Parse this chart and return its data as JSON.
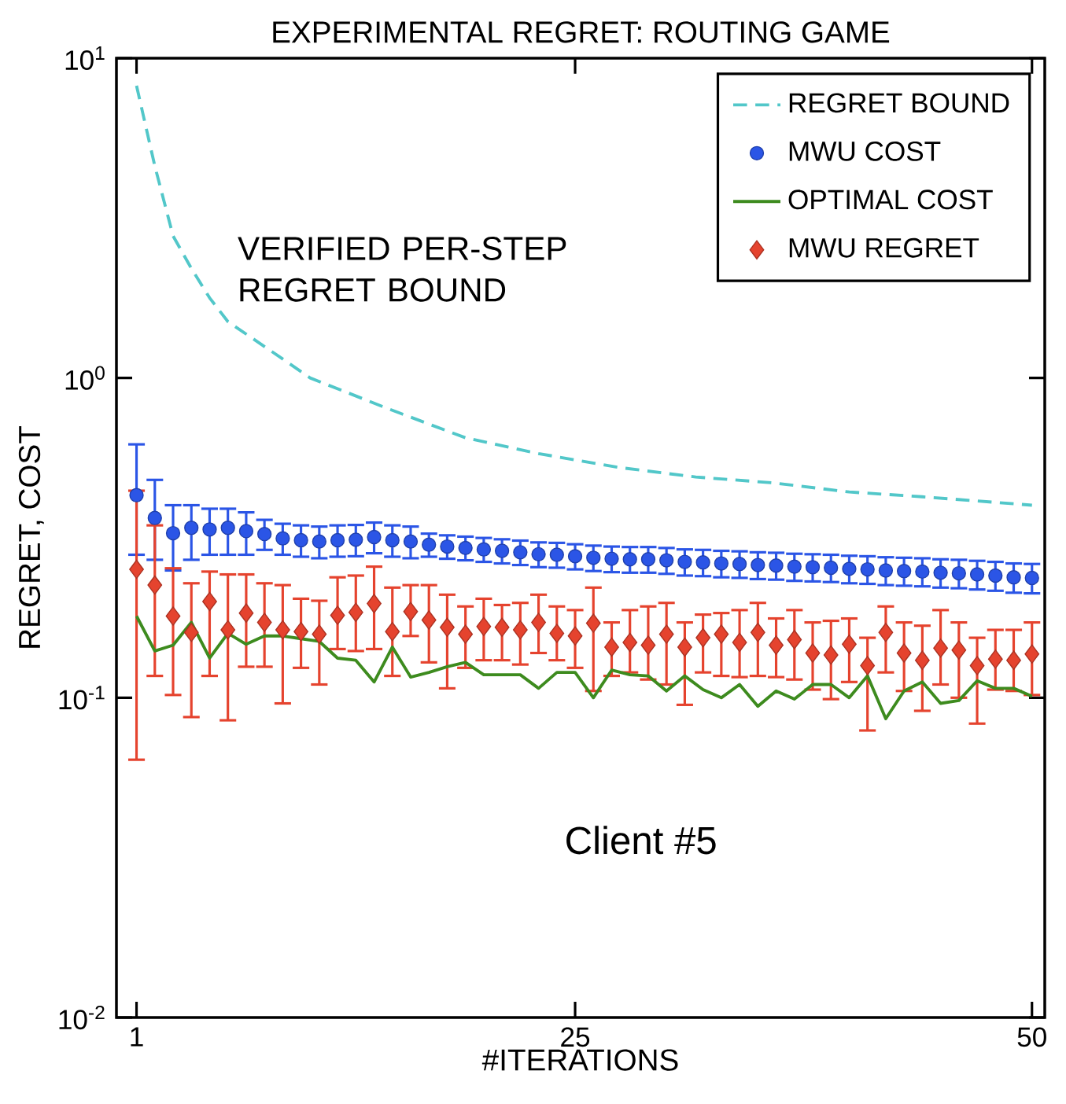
{
  "chart_data": {
    "type": "line",
    "title": "EXPERIMENTAL REGRET: ROUTING GAME",
    "xlabel": "#ITERATIONS",
    "ylabel": "REGRET, COST",
    "annotations": [
      "VERIFIED PER-STEP REGRET BOUND",
      "Client #5"
    ],
    "log": true,
    "legend": "top right",
    "xlim": [
      -0.1,
      50.7
    ],
    "ylim": [
      0.01,
      10
    ],
    "xticks": [
      1,
      25,
      50
    ],
    "yticks": [
      {
        "value": 0.01,
        "label": "10$^{-2}$"
      },
      {
        "value": 0.1,
        "label": "10$^{-1}$"
      },
      {
        "value": 1,
        "label": "10$^{0}$"
      },
      {
        "value": 10,
        "label": "10$^{1}$"
      }
    ],
    "x": [
      1,
      2,
      3,
      4,
      5,
      6,
      7,
      8,
      9,
      10,
      11,
      12,
      13,
      14,
      15,
      16,
      17,
      18,
      19,
      20,
      21,
      22,
      23,
      24,
      25,
      26,
      27,
      28,
      29,
      30,
      31,
      32,
      33,
      34,
      35,
      36,
      37,
      38,
      39,
      40,
      41,
      42,
      43,
      44,
      45,
      46,
      47,
      48,
      49,
      50
    ],
    "series": [
      {
        "name": "REGRET BOUND",
        "line_style": "dashed",
        "color": "#52c7c9",
        "x": [
          1,
          2,
          3,
          4,
          5,
          6,
          8.4,
          10.5,
          14.8,
          19,
          23,
          27.4,
          31.6,
          35.8,
          40,
          44,
          50
        ],
        "values": [
          8.2,
          4.6,
          2.78,
          2.2,
          1.78,
          1.5,
          1.21,
          1.0,
          0.8,
          0.65,
          0.58,
          0.525,
          0.49,
          0.47,
          0.44,
          0.425,
          0.4
        ]
      },
      {
        "name": "MWU COST",
        "type": "scatter",
        "marker": "circle",
        "color": "#2b55e6",
        "values": [
          0.43,
          0.365,
          0.327,
          0.34,
          0.336,
          0.34,
          0.332,
          0.325,
          0.315,
          0.311,
          0.308,
          0.311,
          0.312,
          0.318,
          0.311,
          0.308,
          0.301,
          0.297,
          0.294,
          0.291,
          0.288,
          0.285,
          0.281,
          0.28,
          0.277,
          0.274,
          0.272,
          0.271,
          0.271,
          0.269,
          0.266,
          0.265,
          0.263,
          0.262,
          0.26,
          0.259,
          0.257,
          0.256,
          0.255,
          0.253,
          0.252,
          0.25,
          0.249,
          0.248,
          0.246,
          0.245,
          0.243,
          0.241,
          0.238,
          0.237
        ],
        "errors": [
          [
            0.28,
            0.62
          ],
          [
            0.27,
            0.48
          ],
          [
            0.25,
            0.4
          ],
          [
            0.27,
            0.4
          ],
          [
            0.28,
            0.39
          ],
          [
            0.28,
            0.39
          ],
          [
            0.28,
            0.38
          ],
          0.035,
          0.035,
          0.035,
          0.035,
          0.035,
          0.035,
          0.035,
          0.035,
          0.035,
          0.025,
          0.025,
          0.025,
          0.025,
          0.025,
          0.025,
          0.025,
          0.025,
          0.025,
          0.025,
          0.025,
          0.025,
          0.025,
          0.025,
          0.025,
          0.025,
          0.025,
          0.025,
          0.025,
          0.025,
          0.025,
          0.025,
          0.025,
          0.025,
          0.025,
          0.025,
          0.025,
          0.025,
          0.025,
          0.025,
          0.025,
          0.025,
          0.025,
          0.025
        ]
      },
      {
        "name": "OPTIMAL COST",
        "line_style": "solid",
        "color": "#3d8b1e",
        "values": [
          0.18,
          0.14,
          0.146,
          0.172,
          0.133,
          0.159,
          0.147,
          0.156,
          0.156,
          0.153,
          0.15,
          0.133,
          0.131,
          0.112,
          0.144,
          0.116,
          0.12,
          0.125,
          0.129,
          0.118,
          0.118,
          0.118,
          0.107,
          0.12,
          0.12,
          0.1,
          0.122,
          0.118,
          0.117,
          0.105,
          0.117,
          0.106,
          0.1,
          0.11,
          0.094,
          0.105,
          0.099,
          0.11,
          0.11,
          0.1,
          0.117,
          0.086,
          0.105,
          0.112,
          0.096,
          0.098,
          0.113,
          0.107,
          0.107,
          0.101
        ]
      },
      {
        "name": "MWU REGRET",
        "type": "scatter",
        "marker": "diamond",
        "color": "#e5432e",
        "values": [
          0.252,
          0.225,
          0.18,
          0.16,
          0.2,
          0.163,
          0.184,
          0.172,
          0.163,
          0.161,
          0.158,
          0.181,
          0.185,
          0.197,
          0.161,
          0.186,
          0.175,
          0.166,
          0.158,
          0.167,
          0.166,
          0.163,
          0.172,
          0.159,
          0.156,
          0.171,
          0.144,
          0.149,
          0.146,
          0.158,
          0.144,
          0.154,
          0.158,
          0.149,
          0.16,
          0.146,
          0.152,
          0.138,
          0.136,
          0.147,
          0.126,
          0.16,
          0.138,
          0.131,
          0.143,
          0.141,
          0.126,
          0.132,
          0.131,
          0.137
        ],
        "errors": [
          [
            0.064,
            0.444
          ],
          [
            0.117,
            0.346
          ],
          [
            0.102,
            0.254
          ],
          [
            0.087,
            0.228
          ],
          [
            0.117,
            0.248
          ],
          [
            0.085,
            0.243
          ],
          [
            0.125,
            0.243
          ],
          [
            0.125,
            0.228
          ],
          [
            0.096,
            0.225
          ],
          [
            0.124,
            0.204
          ],
          [
            0.11,
            0.201
          ],
          [
            0.142,
            0.238
          ],
          [
            0.14,
            0.241
          ],
          [
            0.142,
            0.257
          ],
          [
            0.117,
            0.221
          ],
          [
            0.156,
            0.225
          ],
          [
            0.129,
            0.225
          ],
          [
            0.107,
            0.21
          ],
          [
            0.124,
            0.193
          ],
          [
            0.131,
            0.204
          ],
          [
            0.131,
            0.195
          ],
          [
            0.127,
            0.198
          ],
          [
            0.138,
            0.21
          ],
          [
            0.131,
            0.193
          ],
          [
            0.124,
            0.188
          ],
          [
            0.105,
            0.221
          ],
          [
            0.117,
            0.172
          ],
          [
            0.12,
            0.188
          ],
          [
            0.114,
            0.193
          ],
          [
            0.11,
            0.198
          ],
          [
            0.095,
            0.172
          ],
          [
            0.12,
            0.182
          ],
          [
            0.117,
            0.184
          ],
          [
            0.116,
            0.188
          ],
          [
            0.117,
            0.198
          ],
          [
            0.116,
            0.177
          ],
          [
            0.114,
            0.188
          ],
          [
            0.106,
            0.172
          ],
          [
            0.099,
            0.174
          ],
          [
            0.112,
            0.177
          ],
          [
            0.079,
            0.154
          ],
          [
            0.12,
            0.193
          ],
          [
            0.105,
            0.172
          ],
          [
            0.091,
            0.168
          ],
          [
            0.11,
            0.188
          ],
          [
            0.1,
            0.172
          ],
          [
            0.083,
            0.154
          ],
          [
            0.106,
            0.163
          ],
          [
            0.105,
            0.163
          ],
          [
            0.102,
            0.172
          ]
        ]
      }
    ]
  }
}
